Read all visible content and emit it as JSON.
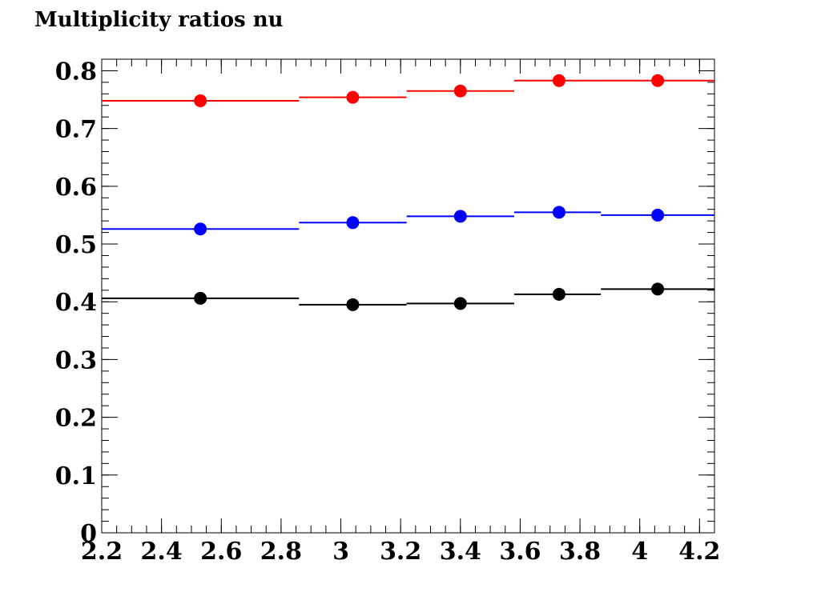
{
  "chart_data": {
    "type": "scatter",
    "title": "Multiplicity ratios nu",
    "xlabel": "",
    "ylabel": "",
    "xlim": [
      2.2,
      4.25
    ],
    "ylim": [
      0,
      0.82
    ],
    "x_ticks": [
      2.2,
      2.4,
      2.6,
      2.8,
      3,
      3.2,
      3.4,
      3.6,
      3.8,
      4,
      4.2
    ],
    "x_tick_labels": [
      "2.2",
      "2.4",
      "2.6",
      "2.8",
      "3",
      "3.2",
      "3.4",
      "3.6",
      "3.8",
      "4",
      "4.2"
    ],
    "y_ticks": [
      0,
      0.1,
      0.2,
      0.3,
      0.4,
      0.5,
      0.6,
      0.7,
      0.8
    ],
    "y_tick_labels": [
      "0",
      "0.1",
      "0.2",
      "0.3",
      "0.4",
      "0.5",
      "0.6",
      "0.7",
      "0.8"
    ],
    "grid": false,
    "bins": [
      {
        "low": 2.2,
        "high": 2.86,
        "center": 2.53
      },
      {
        "low": 2.86,
        "high": 3.22,
        "center": 3.04
      },
      {
        "low": 3.22,
        "high": 3.58,
        "center": 3.4
      },
      {
        "low": 3.58,
        "high": 3.87,
        "center": 3.73
      },
      {
        "low": 3.87,
        "high": 4.25,
        "center": 4.06
      }
    ],
    "series": [
      {
        "color": "#ff0000",
        "values": [
          0.748,
          0.754,
          0.765,
          0.783,
          0.783
        ]
      },
      {
        "color": "#0000ff",
        "values": [
          0.526,
          0.537,
          0.548,
          0.555,
          0.55
        ]
      },
      {
        "color": "#000000",
        "values": [
          0.406,
          0.395,
          0.397,
          0.413,
          0.422
        ]
      }
    ]
  }
}
